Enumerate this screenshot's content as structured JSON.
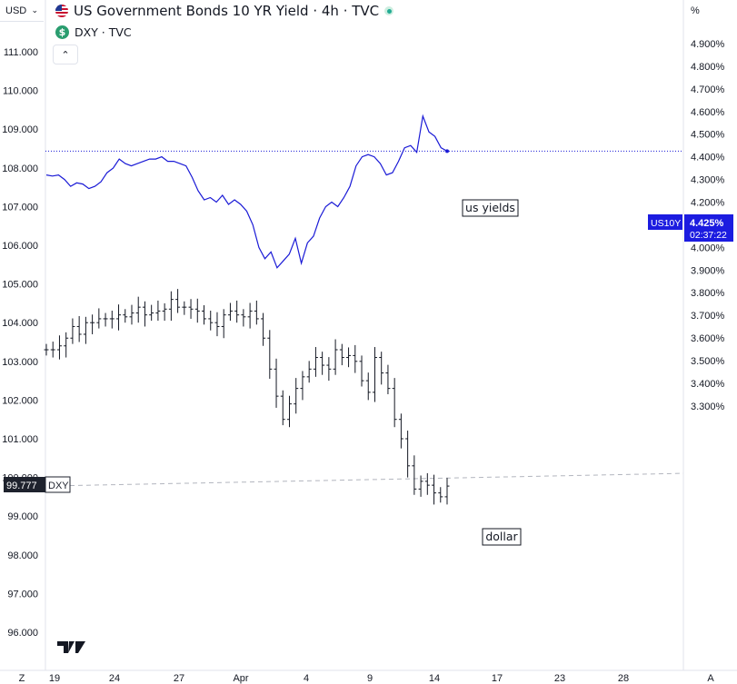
{
  "header": {
    "currency": "USD",
    "title": "US Government Bonds 10 YR Yield · 4h · TVC",
    "subtitle": "DXY · TVC",
    "right_unit": "%"
  },
  "badges": {
    "dxy_value": "99.777",
    "dxy_label": "DXY",
    "us10y_label": "US10Y",
    "us10y_value": "4.425%",
    "countdown": "02:37:22"
  },
  "annotations": {
    "yields": "us yields",
    "dollar": "dollar"
  },
  "colors": {
    "yield_line": "#1a1ad6",
    "dxy_bars": "#131722",
    "badge_blue": "#1c1ce0",
    "badge_dark": "#1e222d"
  },
  "chart_data": {
    "type": "line",
    "x_ticks": [
      "19",
      "24",
      "27",
      "Apr",
      "4",
      "9",
      "14",
      "17",
      "23",
      "28"
    ],
    "left_axis": {
      "ticks": [
        "111.000",
        "110.000",
        "109.000",
        "108.000",
        "107.000",
        "106.000",
        "105.000",
        "104.000",
        "103.000",
        "102.000",
        "101.000",
        "100.000",
        "99.000",
        "98.000",
        "97.000",
        "96.000"
      ],
      "range": [
        95.3,
        111.8
      ]
    },
    "right_axis": {
      "ticks": [
        "4.900%",
        "4.800%",
        "4.700%",
        "4.600%",
        "4.500%",
        "4.400%",
        "4.300%",
        "4.200%",
        "4.100%",
        "4.000%",
        "3.900%",
        "3.800%",
        "3.700%",
        "3.600%",
        "3.500%",
        "3.400%",
        "3.300%"
      ],
      "range": [
        3.27,
        4.975
      ]
    },
    "series": [
      {
        "name": "US10Y",
        "axis": "right",
        "style": "line",
        "values": [
          4.32,
          4.315,
          4.32,
          4.3,
          4.27,
          4.285,
          4.28,
          4.26,
          4.27,
          4.29,
          4.33,
          4.35,
          4.39,
          4.37,
          4.36,
          4.37,
          4.38,
          4.39,
          4.39,
          4.4,
          4.38,
          4.38,
          4.37,
          4.36,
          4.31,
          4.25,
          4.21,
          4.22,
          4.2,
          4.23,
          4.19,
          4.21,
          4.19,
          4.16,
          4.1,
          4.0,
          3.95,
          3.98,
          3.91,
          3.94,
          3.97,
          4.04,
          3.93,
          4.02,
          4.05,
          4.13,
          4.18,
          4.2,
          4.18,
          4.22,
          4.27,
          4.36,
          4.4,
          4.41,
          4.4,
          4.37,
          4.32,
          4.33,
          4.38,
          4.44,
          4.45,
          4.42,
          4.58,
          4.51,
          4.49,
          4.44,
          4.425
        ]
      },
      {
        "name": "DXY",
        "axis": "left",
        "style": "ohlc",
        "values": [
          103.3,
          103.3,
          103.4,
          103.6,
          103.9,
          103.7,
          104.0,
          104.0,
          104.1,
          104.1,
          104.1,
          104.2,
          104.15,
          104.25,
          104.4,
          104.2,
          104.25,
          104.3,
          104.35,
          104.6,
          104.4,
          104.4,
          104.35,
          104.3,
          104.1,
          104.0,
          103.9,
          104.2,
          104.3,
          104.2,
          104.15,
          104.3,
          104.1,
          103.6,
          102.8,
          102.1,
          101.5,
          101.9,
          102.3,
          102.6,
          102.8,
          103.1,
          102.9,
          102.8,
          103.3,
          103.1,
          103.15,
          103.0,
          102.5,
          102.2,
          103.1,
          102.7,
          102.3,
          101.5,
          101.0,
          100.3,
          99.7,
          99.9,
          99.8,
          99.6,
          99.5,
          99.777
        ]
      }
    ],
    "horizontal_lines": [
      {
        "series": "US10Y",
        "value": 4.425,
        "style": "dotted"
      },
      {
        "series": "DXY",
        "value": 99.777,
        "style": "dashed"
      }
    ],
    "grid": false
  }
}
